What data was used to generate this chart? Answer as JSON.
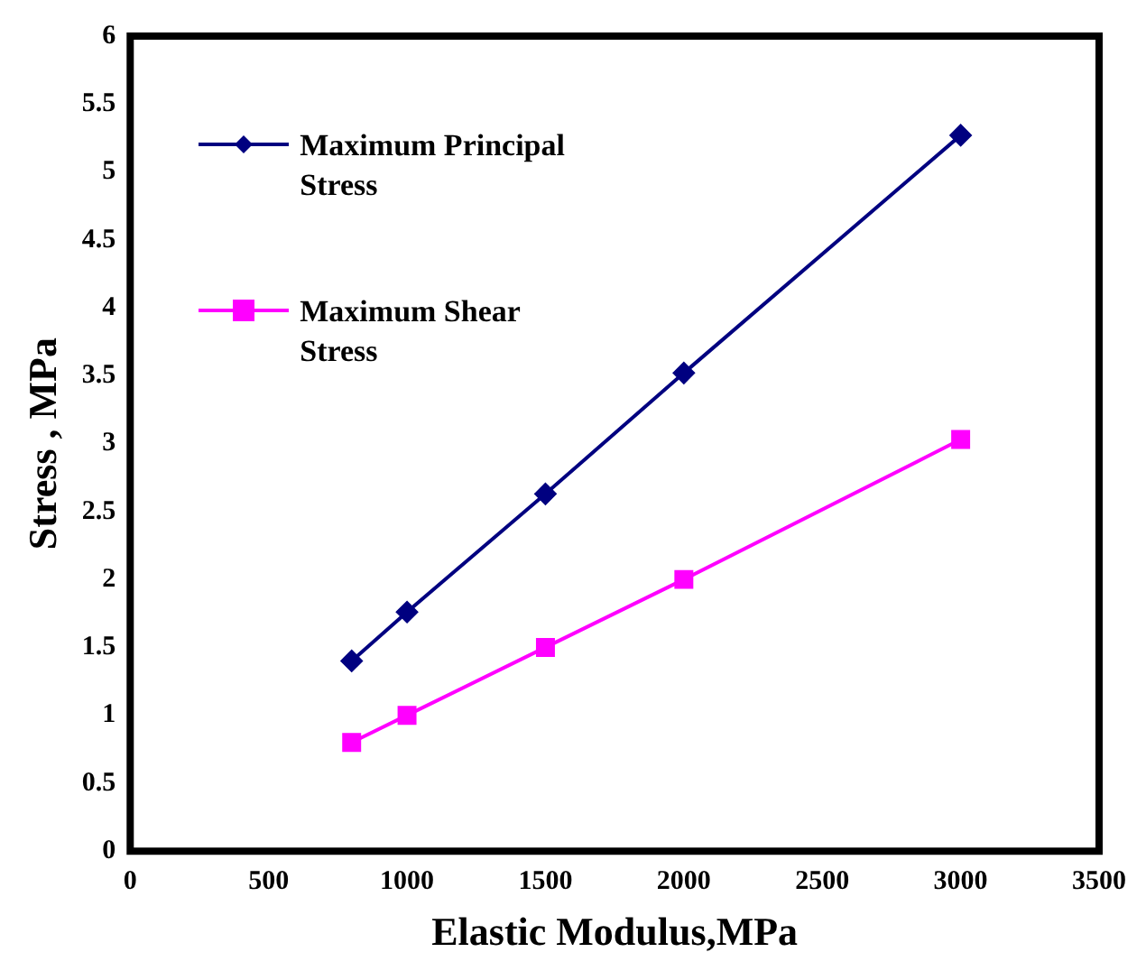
{
  "chart_data": {
    "type": "line",
    "xlabel": "Elastic Modulus,MPa",
    "ylabel": "Stress , MPa",
    "xlim": [
      0,
      3500
    ],
    "xticks": [
      0,
      500,
      1000,
      1500,
      2000,
      2500,
      3000,
      3500
    ],
    "ylim": [
      0,
      6
    ],
    "yticks": [
      0,
      0.5,
      1,
      1.5,
      2,
      2.5,
      3,
      3.5,
      4,
      4.5,
      5,
      5.5,
      6
    ],
    "grid": false,
    "legend": "top left",
    "x": [
      800,
      1000,
      1500,
      2000,
      3000
    ],
    "series": [
      {
        "name": "Maximum Principal Stress",
        "color": "#000080",
        "marker": "diamond",
        "values": [
          1.4,
          1.76,
          2.63,
          3.52,
          5.27
        ]
      },
      {
        "name": "Maximum Shear Stress",
        "color": "#ff00ff",
        "marker": "square",
        "values": [
          0.8,
          1.0,
          1.5,
          2.0,
          3.03
        ]
      }
    ]
  }
}
